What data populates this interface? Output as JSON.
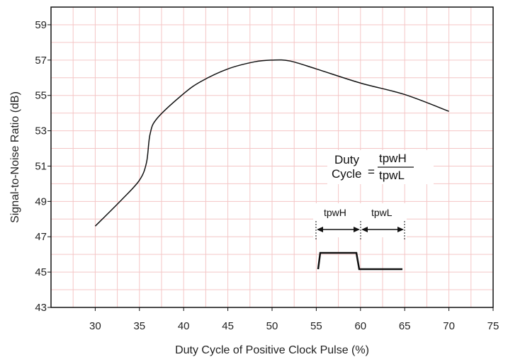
{
  "chart_data": {
    "type": "line",
    "title": "",
    "xlabel": "Duty Cycle of Positive Clock Pulse (%)",
    "ylabel": "Signal-to-Noise Ratio (dB)",
    "xlim": [
      25,
      75
    ],
    "ylim": [
      43,
      60
    ],
    "x_ticks": [
      30,
      35,
      40,
      45,
      50,
      55,
      60,
      65,
      70,
      75
    ],
    "y_ticks": [
      43,
      45,
      47,
      49,
      51,
      53,
      55,
      57,
      59
    ],
    "grid": true,
    "colors": {
      "grid": "#f4c6c6",
      "line": "#111111",
      "axis": "#111111"
    },
    "series": [
      {
        "x": [
          30,
          33,
          35,
          35.8,
          36.2,
          37,
          40,
          42,
          45,
          48,
          50,
          52,
          55,
          60,
          65,
          70
        ],
        "y": [
          47.6,
          49.1,
          50.2,
          51.2,
          52.8,
          53.7,
          55.1,
          55.8,
          56.5,
          56.9,
          57.0,
          56.95,
          56.5,
          55.7,
          55.05,
          54.1
        ]
      }
    ],
    "annotation": {
      "formula_lhs_line1": "Duty",
      "formula_lhs_line2": "Cycle",
      "equals": "=",
      "numerator": "tpwH",
      "denominator": "tpwL",
      "pulse_label_high": "tpwH",
      "pulse_label_low": "tpwL"
    }
  }
}
